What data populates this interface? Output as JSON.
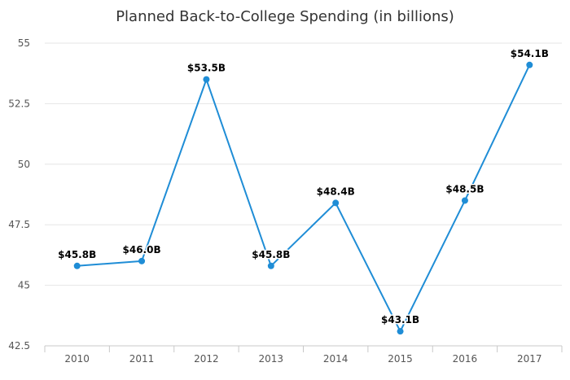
{
  "chart_data": {
    "type": "line",
    "title": "Planned Back-to-College Spending (in billions)",
    "xlabel": "",
    "ylabel": "",
    "categories": [
      "2010",
      "2011",
      "2012",
      "2013",
      "2014",
      "2015",
      "2016",
      "2017"
    ],
    "series": [
      {
        "values": [
          45.8,
          46.0,
          53.5,
          45.8,
          48.4,
          43.1,
          48.5,
          54.1
        ],
        "data_labels": [
          "$45.8B",
          "$46.0B",
          "$53.5B",
          "$45.8B",
          "$48.4B",
          "$43.1B",
          "$48.5B",
          "$54.1B"
        ],
        "color": "#1f8dd6"
      }
    ],
    "ylim": [
      42.5,
      55
    ],
    "yticks": [
      42.5,
      45,
      47.5,
      50,
      52.5,
      55
    ],
    "ytick_labels": [
      "42.5",
      "45",
      "47.5",
      "50",
      "52.5",
      "55"
    ],
    "grid": {
      "horizontal": true,
      "vertical": false
    },
    "colors": {
      "gridline": "#e6e6e6",
      "axis": "#c8c8c8",
      "line": "#1f8dd6"
    },
    "legend": "none"
  }
}
